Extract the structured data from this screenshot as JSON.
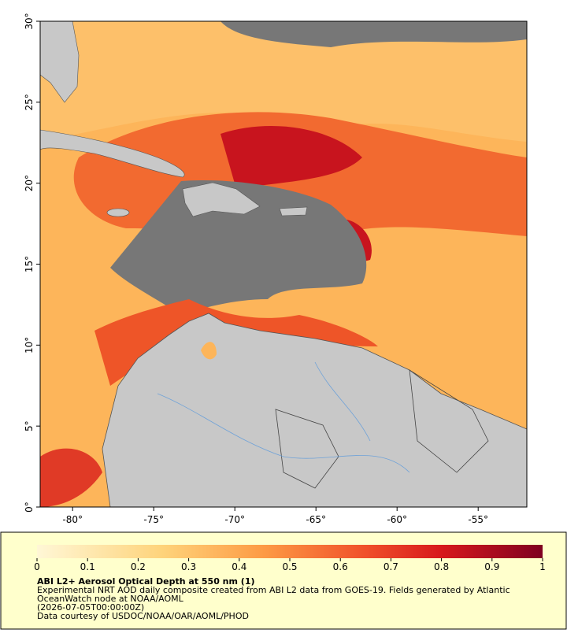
{
  "map": {
    "xlim": [
      -82,
      -52
    ],
    "ylim": [
      0,
      30
    ],
    "xticks": [
      {
        "value": -80,
        "label": "-80°"
      },
      {
        "value": -75,
        "label": "-75°"
      },
      {
        "value": -70,
        "label": "-70°"
      },
      {
        "value": -65,
        "label": "-65°"
      },
      {
        "value": -60,
        "label": "-60°"
      },
      {
        "value": -55,
        "label": "-55°"
      }
    ],
    "yticks": [
      {
        "value": 0,
        "label": "0°"
      },
      {
        "value": 5,
        "label": "5°"
      },
      {
        "value": 10,
        "label": "10°"
      },
      {
        "value": 15,
        "label": "15°"
      },
      {
        "value": 20,
        "label": "20°"
      },
      {
        "value": 25,
        "label": "25°"
      },
      {
        "value": 30,
        "label": "30°"
      }
    ]
  },
  "colorbar": {
    "lim": [
      0,
      1
    ],
    "ticks": [
      0,
      0.1,
      0.2,
      0.3,
      0.4,
      0.5,
      0.6,
      0.7,
      0.8,
      0.9,
      1
    ]
  },
  "caption": {
    "title": "ABI L2+ Aerosol Optical Depth at 550 nm (1)",
    "lines": [
      "Experimental NRT AOD daily composite created from ABI L2 data from GOES-19. Fields generated by Atlantic",
      "OceanWatch node at NOAA/AOML",
      "(2026-07-05T00:00:00Z)",
      "Data courtesy of USDOC/NOAA/OAR/AOML/PHOD"
    ]
  }
}
